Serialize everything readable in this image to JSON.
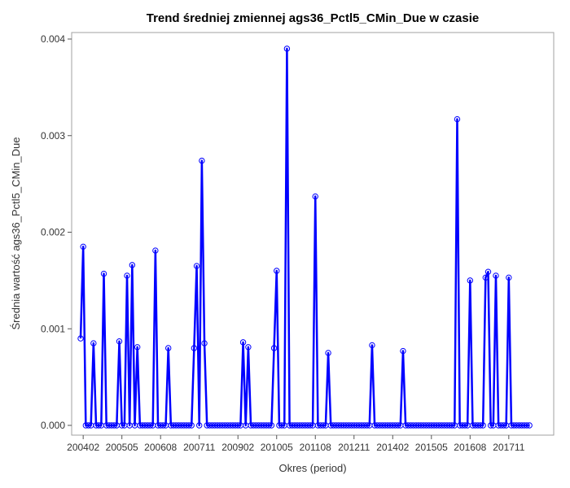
{
  "chart_data": {
    "type": "line",
    "title": "Trend średniej zmiennej ags36_Pctl5_CMin_Due w czasie",
    "xlabel": "Okres (period)",
    "ylabel": "Średnia wartość ags36_Pctl5_CMin_Due",
    "x_start": "200401",
    "x_end": "201812",
    "x_ticks": [
      "200402",
      "200505",
      "200608",
      "200711",
      "200902",
      "201005",
      "201108",
      "201211",
      "201402",
      "201505",
      "201608",
      "201711"
    ],
    "y_ticks": [
      "0.000",
      "0.001",
      "0.002",
      "0.003",
      "0.004"
    ],
    "ylim": [
      0,
      0.004
    ],
    "grid": false,
    "legend": "none",
    "line_color": "#0000ff",
    "points": [
      [
        "200401",
        0.0009
      ],
      [
        "200402",
        0.00185
      ],
      [
        "200403",
        0
      ],
      [
        "200404",
        0
      ],
      [
        "200405",
        0
      ],
      [
        "200406",
        0.00085
      ],
      [
        "200407",
        0
      ],
      [
        "200408",
        0
      ],
      [
        "200409",
        0
      ],
      [
        "200410",
        0.00157
      ],
      [
        "200411",
        0
      ],
      [
        "200412",
        0
      ],
      [
        "200501",
        0
      ],
      [
        "200502",
        0
      ],
      [
        "200503",
        0
      ],
      [
        "200504",
        0.00087
      ],
      [
        "200505",
        0
      ],
      [
        "200506",
        0
      ],
      [
        "200507",
        0.00155
      ],
      [
        "200508",
        0
      ],
      [
        "200509",
        0.00166
      ],
      [
        "200510",
        0
      ],
      [
        "200511",
        0.00081
      ],
      [
        "200512",
        0
      ],
      [
        "200601",
        0
      ],
      [
        "200602",
        0
      ],
      [
        "200603",
        0
      ],
      [
        "200604",
        0
      ],
      [
        "200605",
        0
      ],
      [
        "200606",
        0.00181
      ],
      [
        "200607",
        0
      ],
      [
        "200608",
        0
      ],
      [
        "200609",
        0
      ],
      [
        "200610",
        0
      ],
      [
        "200611",
        0.0008
      ],
      [
        "200612",
        0
      ],
      [
        "200701",
        0
      ],
      [
        "200702",
        0
      ],
      [
        "200703",
        0
      ],
      [
        "200704",
        0
      ],
      [
        "200705",
        0
      ],
      [
        "200706",
        0
      ],
      [
        "200707",
        0
      ],
      [
        "200708",
        0
      ],
      [
        "200709",
        0.0008
      ],
      [
        "200710",
        0.00165
      ],
      [
        "200711",
        0
      ],
      [
        "200712",
        0.00274
      ],
      [
        "200801",
        0.00085
      ],
      [
        "200802",
        0
      ],
      [
        "200803",
        0
      ],
      [
        "200804",
        0
      ],
      [
        "200805",
        0
      ],
      [
        "200806",
        0
      ],
      [
        "200807",
        0
      ],
      [
        "200808",
        0
      ],
      [
        "200809",
        0
      ],
      [
        "200810",
        0
      ],
      [
        "200811",
        0
      ],
      [
        "200812",
        0
      ],
      [
        "200901",
        0
      ],
      [
        "200902",
        0
      ],
      [
        "200903",
        0
      ],
      [
        "200904",
        0.00086
      ],
      [
        "200905",
        0
      ],
      [
        "200906",
        0.00081
      ],
      [
        "200907",
        0
      ],
      [
        "200908",
        0
      ],
      [
        "200909",
        0
      ],
      [
        "200910",
        0
      ],
      [
        "200911",
        0
      ],
      [
        "200912",
        0
      ],
      [
        "201001",
        0
      ],
      [
        "201002",
        0
      ],
      [
        "201003",
        0
      ],
      [
        "201004",
        0.0008
      ],
      [
        "201005",
        0.0016
      ],
      [
        "201006",
        0
      ],
      [
        "201007",
        0
      ],
      [
        "201008",
        0
      ],
      [
        "201009",
        0.0039
      ],
      [
        "201010",
        0
      ],
      [
        "201011",
        0
      ],
      [
        "201012",
        0
      ],
      [
        "201101",
        0
      ],
      [
        "201102",
        0
      ],
      [
        "201103",
        0
      ],
      [
        "201104",
        0
      ],
      [
        "201105",
        0
      ],
      [
        "201106",
        0
      ],
      [
        "201107",
        0
      ],
      [
        "201108",
        0.00237
      ],
      [
        "201109",
        0
      ],
      [
        "201110",
        0
      ],
      [
        "201111",
        0
      ],
      [
        "201112",
        0
      ],
      [
        "201201",
        0.00075
      ],
      [
        "201202",
        0
      ],
      [
        "201203",
        0
      ],
      [
        "201204",
        0
      ],
      [
        "201205",
        0
      ],
      [
        "201206",
        0
      ],
      [
        "201207",
        0
      ],
      [
        "201208",
        0
      ],
      [
        "201209",
        0
      ],
      [
        "201210",
        0
      ],
      [
        "201211",
        0
      ],
      [
        "201212",
        0
      ],
      [
        "201301",
        0
      ],
      [
        "201302",
        0
      ],
      [
        "201303",
        0
      ],
      [
        "201304",
        0
      ],
      [
        "201305",
        0
      ],
      [
        "201306",
        0.00083
      ],
      [
        "201307",
        0
      ],
      [
        "201308",
        0
      ],
      [
        "201309",
        0
      ],
      [
        "201310",
        0
      ],
      [
        "201311",
        0
      ],
      [
        "201312",
        0
      ],
      [
        "201401",
        0
      ],
      [
        "201402",
        0
      ],
      [
        "201403",
        0
      ],
      [
        "201404",
        0
      ],
      [
        "201405",
        0
      ],
      [
        "201406",
        0.00077
      ],
      [
        "201407",
        0
      ],
      [
        "201408",
        0
      ],
      [
        "201409",
        0
      ],
      [
        "201410",
        0
      ],
      [
        "201411",
        0
      ],
      [
        "201412",
        0
      ],
      [
        "201501",
        0
      ],
      [
        "201502",
        0
      ],
      [
        "201503",
        0
      ],
      [
        "201504",
        0
      ],
      [
        "201505",
        0
      ],
      [
        "201506",
        0
      ],
      [
        "201507",
        0
      ],
      [
        "201508",
        0
      ],
      [
        "201509",
        0
      ],
      [
        "201510",
        0
      ],
      [
        "201511",
        0
      ],
      [
        "201512",
        0
      ],
      [
        "201601",
        0
      ],
      [
        "201602",
        0
      ],
      [
        "201603",
        0.00317
      ],
      [
        "201604",
        0
      ],
      [
        "201605",
        0
      ],
      [
        "201606",
        0
      ],
      [
        "201607",
        0
      ],
      [
        "201608",
        0.0015
      ],
      [
        "201609",
        0
      ],
      [
        "201610",
        0
      ],
      [
        "201611",
        0
      ],
      [
        "201612",
        0
      ],
      [
        "201701",
        0
      ],
      [
        "201702",
        0.00153
      ],
      [
        "201703",
        0.00159
      ],
      [
        "201704",
        0
      ],
      [
        "201705",
        0
      ],
      [
        "201706",
        0.00155
      ],
      [
        "201707",
        0
      ],
      [
        "201708",
        0
      ],
      [
        "201709",
        0
      ],
      [
        "201710",
        0
      ],
      [
        "201711",
        0.00153
      ],
      [
        "201712",
        0
      ],
      [
        "201801",
        0
      ],
      [
        "201802",
        0
      ],
      [
        "201803",
        0
      ],
      [
        "201804",
        0
      ],
      [
        "201805",
        0
      ],
      [
        "201806",
        0
      ],
      [
        "201807",
        0
      ]
    ]
  }
}
